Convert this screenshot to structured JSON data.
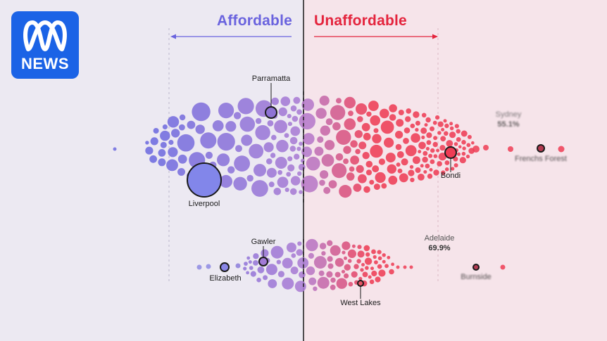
{
  "brand": {
    "logo_text": "NEWS",
    "logo_color": "#1b63e6"
  },
  "header": {
    "affordable_label": "Affordable",
    "unaffordable_label": "Unaffordable"
  },
  "colors": {
    "affordable": "#6e6bdf",
    "middle": "#b27ed2",
    "unaffordable": "#ee3d55"
  },
  "chart_data": {
    "type": "scatter",
    "description_free": true,
    "series": [
      {
        "name": "Sydney",
        "share_unaffordable": "55.1%",
        "highlighted_suburbs": [
          "Parramatta",
          "Liverpool",
          "Bondi",
          "Frenchs Forest"
        ]
      },
      {
        "name": "Adelaide",
        "share_unaffordable": "69.9%",
        "highlighted_suburbs": [
          "Gawler",
          "Elizabeth",
          "West Lakes",
          "Burnside"
        ]
      }
    ],
    "labels": {
      "sydney_city": "Sydney",
      "sydney_pct": "55.1%",
      "adelaide_city": "Adelaide",
      "adelaide_pct": "69.9%",
      "parramatta": "Parramatta",
      "liverpool": "Liverpool",
      "bondi": "Bondi",
      "frenchs_forest": "Frenchs Forest",
      "gawler": "Gawler",
      "elizabeth": "Elizabeth",
      "west_lakes": "West Lakes",
      "burnside": "Burnside"
    }
  }
}
